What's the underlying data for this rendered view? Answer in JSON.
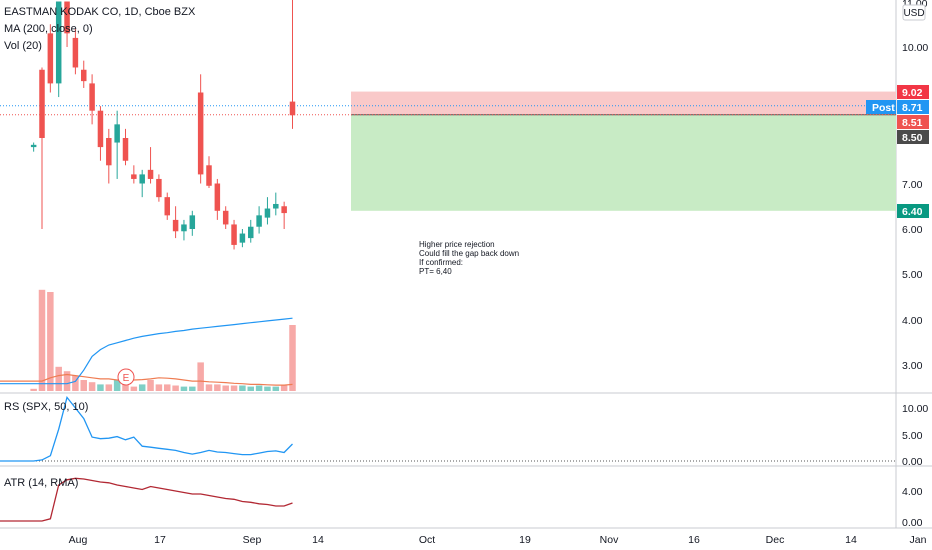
{
  "legend": {
    "title": "EASTMAN KODAK CO, 1D, Cboe BZX",
    "ma": "MA (200, close, 0)",
    "vol": "Vol (20)",
    "rs": "RS (SPX, 50, 10)",
    "atr": "ATR (14, RMA)"
  },
  "currency": "USD",
  "price_axis": {
    "ticks": [
      "11.00",
      "10.00",
      "7.00",
      "6.00",
      "5.00",
      "4.00",
      "3.00"
    ],
    "top_value": "11.00"
  },
  "rs_axis": {
    "ticks": [
      "10.00",
      "5.00",
      "0.00"
    ]
  },
  "atr_axis": {
    "ticks": [
      "4.00",
      "0.00"
    ]
  },
  "x_axis": {
    "ticks": [
      "Aug",
      "17",
      "Sep",
      "14",
      "Oct",
      "19",
      "Nov",
      "16",
      "Dec",
      "14",
      "Jan"
    ]
  },
  "price_tags": {
    "stop": "9.02",
    "post_label": "Post",
    "post": "8.71",
    "entry": "8.51",
    "last": "8.50",
    "target": "6.40"
  },
  "annotation": [
    "Higher price rejection",
    "Could fill the gap back down",
    "If confirmed:",
    "PT= 6,40"
  ],
  "earnings_marker": "E",
  "colors": {
    "up": "#26a69a",
    "down": "#ef5350",
    "vol_up": "#7fcfc6",
    "vol_down": "#f7a9a7",
    "ma_line": "#2196f3",
    "vol_ma": "#ef7c52",
    "rs_line": "#2196f3",
    "atr_line": "#b22833",
    "stop_zone": "#f9c9c9",
    "target_zone": "#c8ebc5",
    "post_tag": "#2196f3",
    "last_tag": "#4a4a4a"
  },
  "chart_data": {
    "type": "candlestick",
    "symbol": "EASTMAN KODAK CO",
    "interval": "1D",
    "exchange": "Cboe BZX",
    "candles": [
      {
        "o": 7.8,
        "h": 7.9,
        "l": 7.7,
        "c": 7.85
      },
      {
        "o": 9.5,
        "h": 9.55,
        "l": 6.0,
        "c": 8.0
      },
      {
        "o": 10.3,
        "h": 10.5,
        "l": 9.0,
        "c": 9.2
      },
      {
        "o": 9.2,
        "h": 11.0,
        "l": 8.9,
        "c": 11.0
      },
      {
        "o": 11.0,
        "h": 11.0,
        "l": 10.0,
        "c": 10.3
      },
      {
        "o": 10.2,
        "h": 10.4,
        "l": 9.4,
        "c": 9.55
      },
      {
        "o": 9.5,
        "h": 9.7,
        "l": 9.1,
        "c": 9.25
      },
      {
        "o": 9.2,
        "h": 9.4,
        "l": 8.3,
        "c": 8.6
      },
      {
        "o": 8.6,
        "h": 8.7,
        "l": 7.5,
        "c": 7.8
      },
      {
        "o": 8.0,
        "h": 8.2,
        "l": 7.0,
        "c": 7.4
      },
      {
        "o": 7.9,
        "h": 8.6,
        "l": 7.1,
        "c": 8.3
      },
      {
        "o": 8.0,
        "h": 8.2,
        "l": 7.4,
        "c": 7.5
      },
      {
        "o": 7.2,
        "h": 7.4,
        "l": 7.0,
        "c": 7.1
      },
      {
        "o": 7.0,
        "h": 7.3,
        "l": 6.7,
        "c": 7.2
      },
      {
        "o": 7.3,
        "h": 7.8,
        "l": 7.0,
        "c": 7.1
      },
      {
        "o": 7.1,
        "h": 7.2,
        "l": 6.6,
        "c": 6.7
      },
      {
        "o": 6.7,
        "h": 6.8,
        "l": 6.2,
        "c": 6.3
      },
      {
        "o": 6.2,
        "h": 6.5,
        "l": 5.8,
        "c": 5.95
      },
      {
        "o": 5.95,
        "h": 6.2,
        "l": 5.75,
        "c": 6.1
      },
      {
        "o": 6.0,
        "h": 6.4,
        "l": 5.85,
        "c": 6.3
      },
      {
        "o": 9.0,
        "h": 9.4,
        "l": 7.0,
        "c": 7.2
      },
      {
        "o": 7.4,
        "h": 7.6,
        "l": 6.9,
        "c": 6.95
      },
      {
        "o": 7.0,
        "h": 7.1,
        "l": 6.2,
        "c": 6.4
      },
      {
        "o": 6.4,
        "h": 6.5,
        "l": 6.0,
        "c": 6.1
      },
      {
        "o": 6.1,
        "h": 6.2,
        "l": 5.55,
        "c": 5.65
      },
      {
        "o": 5.7,
        "h": 6.0,
        "l": 5.6,
        "c": 5.9
      },
      {
        "o": 5.8,
        "h": 6.2,
        "l": 5.7,
        "c": 6.05
      },
      {
        "o": 6.05,
        "h": 6.5,
        "l": 5.9,
        "c": 6.3
      },
      {
        "o": 6.25,
        "h": 6.7,
        "l": 6.1,
        "c": 6.45
      },
      {
        "o": 6.45,
        "h": 6.8,
        "l": 6.3,
        "c": 6.55
      },
      {
        "o": 6.5,
        "h": 6.6,
        "l": 6.0,
        "c": 6.35
      },
      {
        "o": 8.8,
        "h": 11.2,
        "l": 8.2,
        "c": 8.5
      }
    ],
    "volume_bars": [
      {
        "v": 0.1,
        "up": false
      },
      {
        "v": 4.6,
        "up": false
      },
      {
        "v": 4.5,
        "up": false
      },
      {
        "v": 1.1,
        "up": false
      },
      {
        "v": 0.9,
        "up": false
      },
      {
        "v": 0.7,
        "up": false
      },
      {
        "v": 0.5,
        "up": false
      },
      {
        "v": 0.4,
        "up": false
      },
      {
        "v": 0.3,
        "up": true
      },
      {
        "v": 0.3,
        "up": false
      },
      {
        "v": 0.5,
        "up": true
      },
      {
        "v": 0.3,
        "up": false
      },
      {
        "v": 0.2,
        "up": false
      },
      {
        "v": 0.3,
        "up": true
      },
      {
        "v": 0.5,
        "up": false
      },
      {
        "v": 0.3,
        "up": false
      },
      {
        "v": 0.3,
        "up": false
      },
      {
        "v": 0.25,
        "up": false
      },
      {
        "v": 0.2,
        "up": true
      },
      {
        "v": 0.2,
        "up": true
      },
      {
        "v": 1.3,
        "up": false
      },
      {
        "v": 0.3,
        "up": false
      },
      {
        "v": 0.3,
        "up": false
      },
      {
        "v": 0.25,
        "up": false
      },
      {
        "v": 0.25,
        "up": false
      },
      {
        "v": 0.25,
        "up": true
      },
      {
        "v": 0.2,
        "up": true
      },
      {
        "v": 0.25,
        "up": true
      },
      {
        "v": 0.2,
        "up": true
      },
      {
        "v": 0.2,
        "up": true
      },
      {
        "v": 0.25,
        "up": false
      },
      {
        "v": 3.0,
        "up": false
      }
    ],
    "rs": [
      0.0,
      0.2,
      1.0,
      6.0,
      12.0,
      10.0,
      8.0,
      4.5,
      4.2,
      4.3,
      4.6,
      4.0,
      4.5,
      2.8,
      2.6,
      2.4,
      2.2,
      2.0,
      1.6,
      1.3,
      1.6,
      2.0,
      1.7,
      1.6,
      1.4,
      1.2,
      1.2,
      1.5,
      1.8,
      1.9,
      1.6,
      3.2
    ],
    "atr": [
      0.0,
      0.0,
      0.3,
      4.8,
      5.5,
      5.7,
      5.6,
      5.4,
      5.2,
      5.1,
      4.8,
      4.6,
      4.4,
      4.2,
      4.6,
      4.4,
      4.2,
      4.0,
      3.8,
      3.6,
      3.6,
      3.4,
      3.2,
      3.0,
      2.9,
      2.6,
      2.5,
      2.3,
      2.2,
      2.0,
      2.0,
      2.4
    ],
    "price_range": [
      5.3,
      11.0
    ],
    "rs_range": [
      0.0,
      12.0
    ],
    "atr_range": [
      0.0,
      6.0
    ],
    "short_position": {
      "stop": 9.02,
      "entry": 8.51,
      "target": 6.4
    }
  }
}
